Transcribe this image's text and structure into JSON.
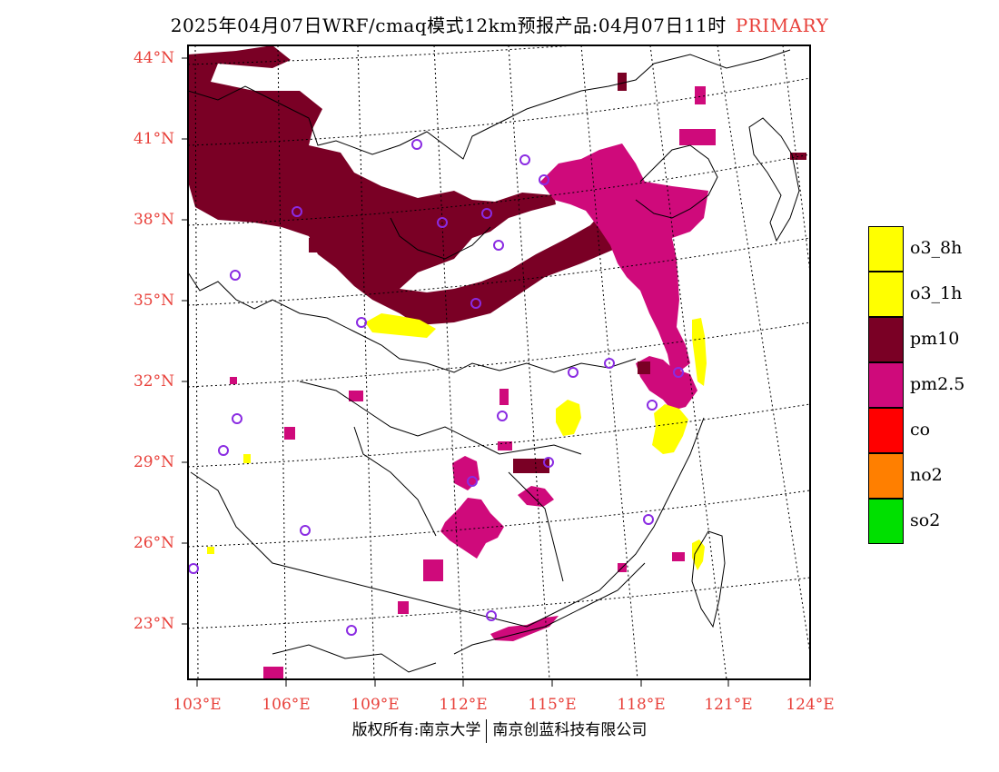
{
  "title": {
    "main": "2025年04月07日WRF/cmaq模式12km预报产品:04月07日11时",
    "tag": "PRIMARY"
  },
  "axes": {
    "lat_labels": [
      "44°N",
      "41°N",
      "38°N",
      "35°N",
      "32°N",
      "29°N",
      "26°N",
      "23°N"
    ],
    "lon_labels": [
      "103°E",
      "106°E",
      "109°E",
      "112°E",
      "115°E",
      "118°E",
      "121°E",
      "124°E"
    ]
  },
  "legend": [
    {
      "label": "o3_8h",
      "color": "#ffff00"
    },
    {
      "label": "o3_1h",
      "color": "#ffff00"
    },
    {
      "label": "pm10",
      "color": "#7a0025"
    },
    {
      "label": "pm2.5",
      "color": "#cf0a7b"
    },
    {
      "label": "co",
      "color": "#ff0000"
    },
    {
      "label": "no2",
      "color": "#ff7f00"
    },
    {
      "label": "so2",
      "color": "#00e000"
    }
  ],
  "footer": {
    "left": "版权所有:南京大学",
    "right": "南京创蓝科技有限公司"
  }
}
